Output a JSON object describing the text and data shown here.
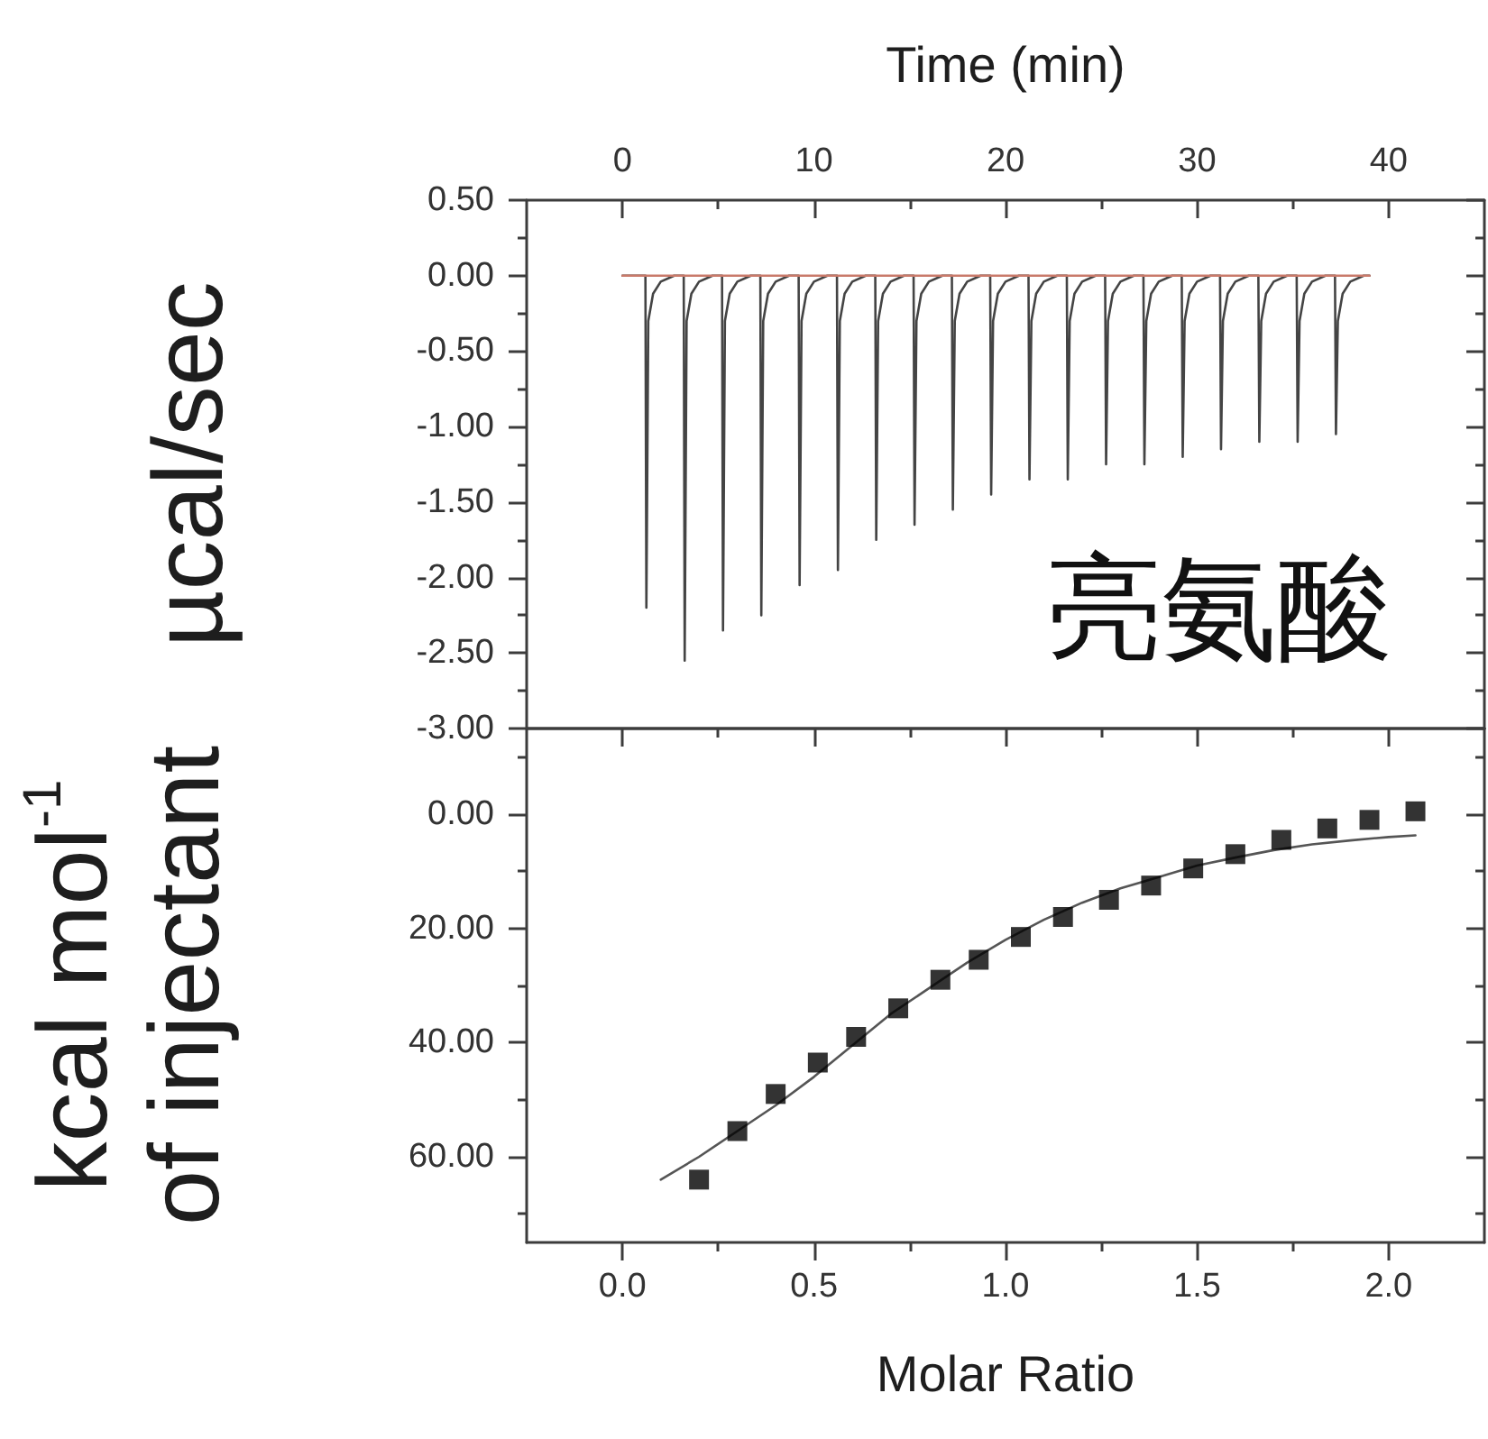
{
  "chart_data": [
    {
      "type": "line",
      "xlabel": "Time (min)",
      "ylabel": "µcal/sec",
      "xlim": [
        -5,
        45
      ],
      "xticks": [
        0,
        10,
        20,
        30,
        40,
        {
          "value": 5,
          "label": null
        },
        {
          "value": 15,
          "label": null
        },
        {
          "value": 25,
          "label": null
        },
        {
          "value": 35,
          "label": null
        }
      ],
      "ylim": [
        -3,
        0.5
      ],
      "yticks": [
        {
          "value": 0.5,
          "label": "0.50"
        },
        {
          "value": 0,
          "label": "0.00"
        },
        {
          "value": -0.5,
          "label": "-0.50"
        },
        {
          "value": -1,
          "label": "-1.00"
        },
        {
          "value": -1.5,
          "label": "-1.50"
        },
        {
          "value": -2,
          "label": "-2.00"
        },
        {
          "value": -2.5,
          "label": "-2.50"
        },
        {
          "value": -3,
          "label": "-3.00"
        },
        {
          "value": 0.25,
          "label": null
        },
        {
          "value": -0.25,
          "label": null
        },
        {
          "value": -0.75,
          "label": null
        },
        {
          "value": -1.25,
          "label": null
        },
        {
          "value": -1.75,
          "label": null
        },
        {
          "value": -2.25,
          "label": null
        },
        {
          "value": -2.75,
          "label": null
        }
      ],
      "marker": "none",
      "annotations": [
        "亮氨酸"
      ],
      "series": [
        {
          "color": "#444444",
          "x": [
            0,
            1.2,
            1.25,
            1.35,
            1.6,
            2,
            2.7,
            3.2,
            3.25,
            3.35,
            3.6,
            4,
            4.7,
            5.2,
            5.25,
            5.35,
            5.6,
            6,
            6.7,
            7.2,
            7.25,
            7.35,
            7.6,
            8,
            8.7,
            9.2,
            9.25,
            9.35,
            9.6,
            10,
            10.7,
            11.2,
            11.25,
            11.35,
            11.6,
            12,
            12.7,
            13.2,
            13.25,
            13.35,
            13.6,
            14,
            14.7,
            15.2,
            15.25,
            15.35,
            15.6,
            16,
            16.7,
            17.2,
            17.25,
            17.35,
            17.6,
            18,
            18.7,
            19.2,
            19.25,
            19.35,
            19.6,
            20,
            20.7,
            21.2,
            21.25,
            21.35,
            21.6,
            22,
            22.7,
            23.2,
            23.25,
            23.35,
            23.6,
            24,
            24.7,
            25.2,
            25.25,
            25.35,
            25.6,
            26,
            26.7,
            27.2,
            27.25,
            27.35,
            27.6,
            28,
            28.7,
            29.2,
            29.25,
            29.35,
            29.6,
            30,
            30.7,
            31.2,
            31.25,
            31.35,
            31.6,
            32,
            32.7,
            33.2,
            33.25,
            33.35,
            33.6,
            34,
            34.7,
            35.2,
            35.25,
            35.35,
            35.6,
            36,
            36.7,
            37.2,
            37.25,
            37.35,
            37.6,
            38,
            38.7,
            39
          ],
          "values": [
            0,
            0,
            -2.2,
            -0.3,
            -0.12,
            -0.04,
            0,
            0,
            -2.55,
            -0.3,
            -0.12,
            -0.04,
            0,
            0,
            -2.35,
            -0.3,
            -0.12,
            -0.04,
            0,
            0,
            -2.25,
            -0.3,
            -0.12,
            -0.04,
            0,
            0,
            -2.05,
            -0.3,
            -0.12,
            -0.04,
            0,
            0,
            -1.95,
            -0.3,
            -0.12,
            -0.04,
            0,
            0,
            -1.75,
            -0.3,
            -0.12,
            -0.04,
            0,
            0,
            -1.65,
            -0.3,
            -0.12,
            -0.04,
            0,
            0,
            -1.55,
            -0.3,
            -0.12,
            -0.04,
            0,
            0,
            -1.45,
            -0.3,
            -0.12,
            -0.04,
            0,
            0,
            -1.35,
            -0.3,
            -0.12,
            -0.04,
            0,
            0,
            -1.35,
            -0.3,
            -0.12,
            -0.04,
            0,
            0,
            -1.25,
            -0.3,
            -0.12,
            -0.04,
            0,
            0,
            -1.25,
            -0.3,
            -0.12,
            -0.04,
            0,
            0,
            -1.2,
            -0.3,
            -0.12,
            -0.04,
            0,
            0,
            -1.15,
            -0.3,
            -0.12,
            -0.04,
            0,
            0,
            -1.1,
            -0.3,
            -0.12,
            -0.04,
            0,
            0,
            -1.1,
            -0.3,
            -0.12,
            -0.04,
            0,
            0,
            -1.05,
            -0.3,
            -0.12,
            -0.04,
            0,
            0
          ]
        },
        {
          "color": "#c97a6a",
          "x": [
            0,
            39
          ],
          "values": [
            0,
            0
          ]
        }
      ]
    },
    {
      "type": "scatter",
      "xlabel": "Molar Ratio",
      "ylabel": "kcal mol$^{-1}$\nof injectant",
      "xlim": [
        -0.25,
        2.25
      ],
      "xticks": [
        {
          "value": 0,
          "label": "0.0"
        },
        0.5,
        {
          "value": 1,
          "label": "1.0"
        },
        1.5,
        {
          "value": 2,
          "label": "2.0"
        },
        {
          "value": 0.25,
          "label": null
        },
        {
          "value": 0.75,
          "label": null
        },
        {
          "value": 1.25,
          "label": null
        },
        {
          "value": 1.75,
          "label": null
        }
      ],
      "ylim": [
        75,
        -15
      ],
      "yticks": [
        {
          "value": 0,
          "label": "0.00"
        },
        {
          "value": 20,
          "label": "20.00"
        },
        {
          "value": 40,
          "label": "40.00"
        },
        {
          "value": 60,
          "label": "60.00"
        },
        {
          "value": -10,
          "label": null
        },
        {
          "value": 10,
          "label": null
        },
        {
          "value": 30,
          "label": null
        },
        {
          "value": 50,
          "label": null
        },
        {
          "value": 70,
          "label": null
        }
      ],
      "series": [
        {
          "type": "line",
          "marker": "none",
          "color": "#555555",
          "x": [
            0.1,
            0.2,
            0.3,
            0.4,
            0.5,
            0.6,
            0.7,
            0.8,
            0.9,
            1.0,
            1.1,
            1.2,
            1.3,
            1.4,
            1.5,
            1.6,
            1.7,
            1.8,
            1.9,
            2.0,
            2.07
          ],
          "values": [
            64,
            60,
            55.5,
            51,
            46,
            40.5,
            35,
            30.5,
            26,
            22,
            18.5,
            15.5,
            13,
            11,
            9,
            7.6,
            6.3,
            5.3,
            4.6,
            4,
            3.7
          ]
        },
        {
          "marker": "square",
          "color": "#000000",
          "x": [
            0.2,
            0.3,
            0.4,
            0.51,
            0.61,
            0.72,
            0.83,
            0.93,
            1.04,
            1.15,
            1.27,
            1.38,
            1.49,
            1.6,
            1.72,
            1.84,
            1.95,
            2.07
          ],
          "values": [
            64,
            55.5,
            49,
            43.5,
            39,
            34,
            29,
            25.5,
            21.5,
            18,
            15,
            12.5,
            9.5,
            7,
            4.5,
            2.5,
            1,
            -0.5
          ]
        }
      ]
    }
  ]
}
